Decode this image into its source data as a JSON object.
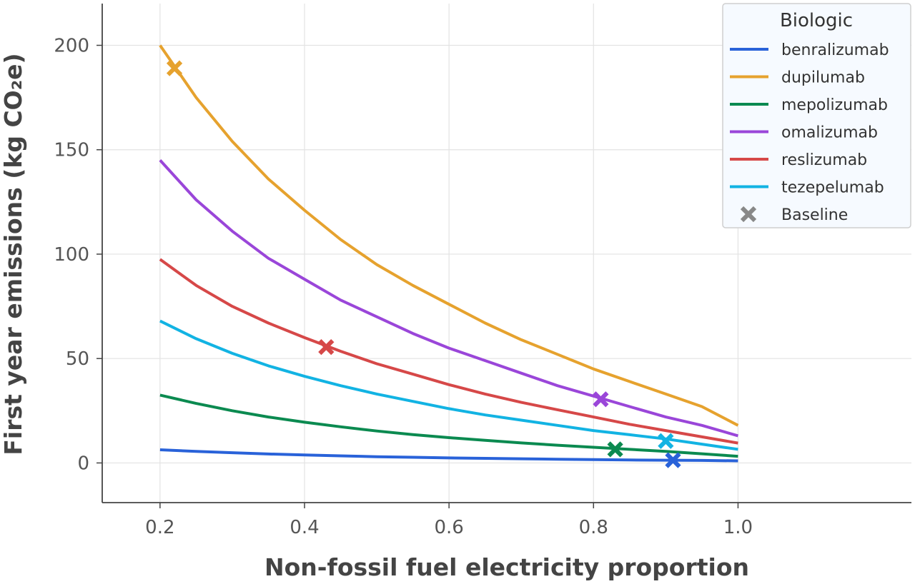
{
  "chart_data": {
    "type": "line",
    "xlabel": "Non-fossil fuel electricity proportion",
    "ylabel": "First year emissions (kg CO₂e)",
    "xlim": [
      0.12,
      1.24
    ],
    "ylim": [
      -19,
      220
    ],
    "x_ticks": [
      0.2,
      0.4,
      0.6,
      0.8,
      1.0
    ],
    "x_tick_labels": [
      "0.2",
      "0.4",
      "0.6",
      "0.8",
      "1.0"
    ],
    "y_ticks": [
      0,
      50,
      100,
      150,
      200
    ],
    "y_tick_labels": [
      "0",
      "50",
      "100",
      "150",
      "200"
    ],
    "grid": true,
    "legend": {
      "title": "Biologic",
      "placement": "top-right",
      "baseline_label": "Baseline",
      "baseline_color": "#888888"
    },
    "x": [
      0.2,
      0.25,
      0.3,
      0.35,
      0.4,
      0.45,
      0.5,
      0.55,
      0.6,
      0.65,
      0.7,
      0.75,
      0.8,
      0.85,
      0.9,
      0.95,
      1.0
    ],
    "series": [
      {
        "name": "benralizumab",
        "color": "#2962d9",
        "values": [
          6.3,
          5.5,
          4.9,
          4.3,
          3.8,
          3.4,
          3.0,
          2.7,
          2.4,
          2.2,
          2.0,
          1.8,
          1.6,
          1.4,
          1.3,
          1.2,
          1.0
        ],
        "baseline": {
          "x": 0.91,
          "y": 1.3
        }
      },
      {
        "name": "dupilumab",
        "color": "#e6a22e",
        "values": [
          200,
          175,
          154,
          136,
          121,
          107,
          95,
          85,
          76,
          67,
          59,
          52,
          45,
          39,
          33,
          27,
          18
        ],
        "baseline": {
          "x": 0.22,
          "y": 189
        }
      },
      {
        "name": "mepolizumab",
        "color": "#0b8a50",
        "values": [
          32.5,
          28.5,
          25,
          22,
          19.5,
          17.3,
          15.3,
          13.6,
          12.1,
          10.8,
          9.6,
          8.5,
          7.5,
          6.5,
          5.5,
          4.4,
          3.2
        ],
        "baseline": {
          "x": 0.83,
          "y": 6.5
        }
      },
      {
        "name": "omalizumab",
        "color": "#9a46d9",
        "values": [
          145,
          126,
          111,
          98,
          88,
          78,
          70,
          62,
          55,
          49,
          43,
          37,
          32,
          27,
          22,
          18,
          13
        ],
        "baseline": {
          "x": 0.81,
          "y": 30.5
        }
      },
      {
        "name": "reslizumab",
        "color": "#d64848",
        "values": [
          97.5,
          85,
          75,
          67,
          60,
          53.5,
          47.5,
          42.5,
          37.5,
          33,
          29,
          25.5,
          22,
          18.5,
          15.5,
          12.5,
          9.5
        ],
        "baseline": {
          "x": 0.43,
          "y": 55.5
        }
      },
      {
        "name": "tezepelumab",
        "color": "#12b3e3",
        "values": [
          68,
          59.5,
          52.5,
          46.5,
          41.5,
          37,
          33,
          29.5,
          26,
          23,
          20.5,
          18,
          15.5,
          13.5,
          11.5,
          9,
          6.5
        ],
        "baseline": {
          "x": 0.9,
          "y": 10.5
        }
      }
    ]
  }
}
